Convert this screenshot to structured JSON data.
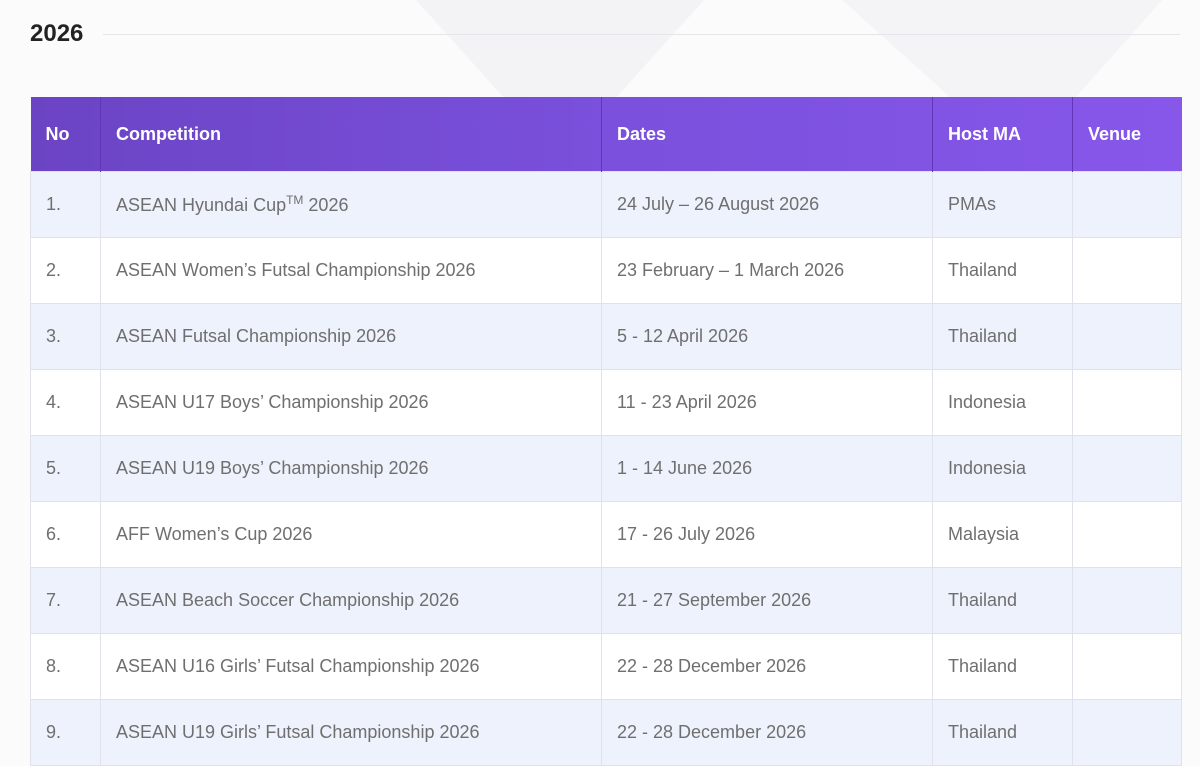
{
  "section": {
    "title": "2026"
  },
  "table": {
    "colors": {
      "header_start": "#6b44c4",
      "header_end": "#8757ea",
      "row_alt": "#eef2fc"
    },
    "headers": [
      "No",
      "Competition",
      "Dates",
      "Host MA",
      "Venue"
    ],
    "rows": [
      {
        "no": "1.",
        "competition": "ASEAN Hyundai Cup",
        "competition_sup": "TM",
        "competition_suffix": " 2026",
        "dates": "24 July – 26 August 2026",
        "host": "PMAs",
        "venue": ""
      },
      {
        "no": "2.",
        "competition": "ASEAN Women’s Futsal Championship 2026",
        "dates": "23 February – 1 March 2026",
        "host": "Thailand",
        "venue": ""
      },
      {
        "no": "3.",
        "competition": "ASEAN Futsal Championship 2026",
        "dates": "5 - 12 April 2026",
        "host": "Thailand",
        "venue": ""
      },
      {
        "no": "4.",
        "competition": "ASEAN U17 Boys’ Championship 2026",
        "dates": "11 - 23 April 2026",
        "host": "Indonesia",
        "venue": ""
      },
      {
        "no": "5.",
        "competition": "ASEAN U19 Boys’ Championship 2026",
        "dates": "1 - 14 June 2026",
        "host": "Indonesia",
        "venue": ""
      },
      {
        "no": "6.",
        "competition": "AFF Women’s Cup 2026",
        "dates": "17 - 26 July 2026",
        "host": "Malaysia",
        "venue": ""
      },
      {
        "no": "7.",
        "competition": "ASEAN Beach Soccer Championship 2026",
        "dates": "21 - 27 September 2026",
        "host": "Thailand",
        "venue": ""
      },
      {
        "no": "8.",
        "competition": "ASEAN U16 Girls’ Futsal Championship 2026",
        "dates": "22 - 28 December 2026",
        "host": "Thailand",
        "venue": ""
      },
      {
        "no": "9.",
        "competition": "ASEAN U19 Girls’ Futsal Championship 2026",
        "dates": "22 - 28 December 2026",
        "host": "Thailand",
        "venue": ""
      }
    ]
  }
}
